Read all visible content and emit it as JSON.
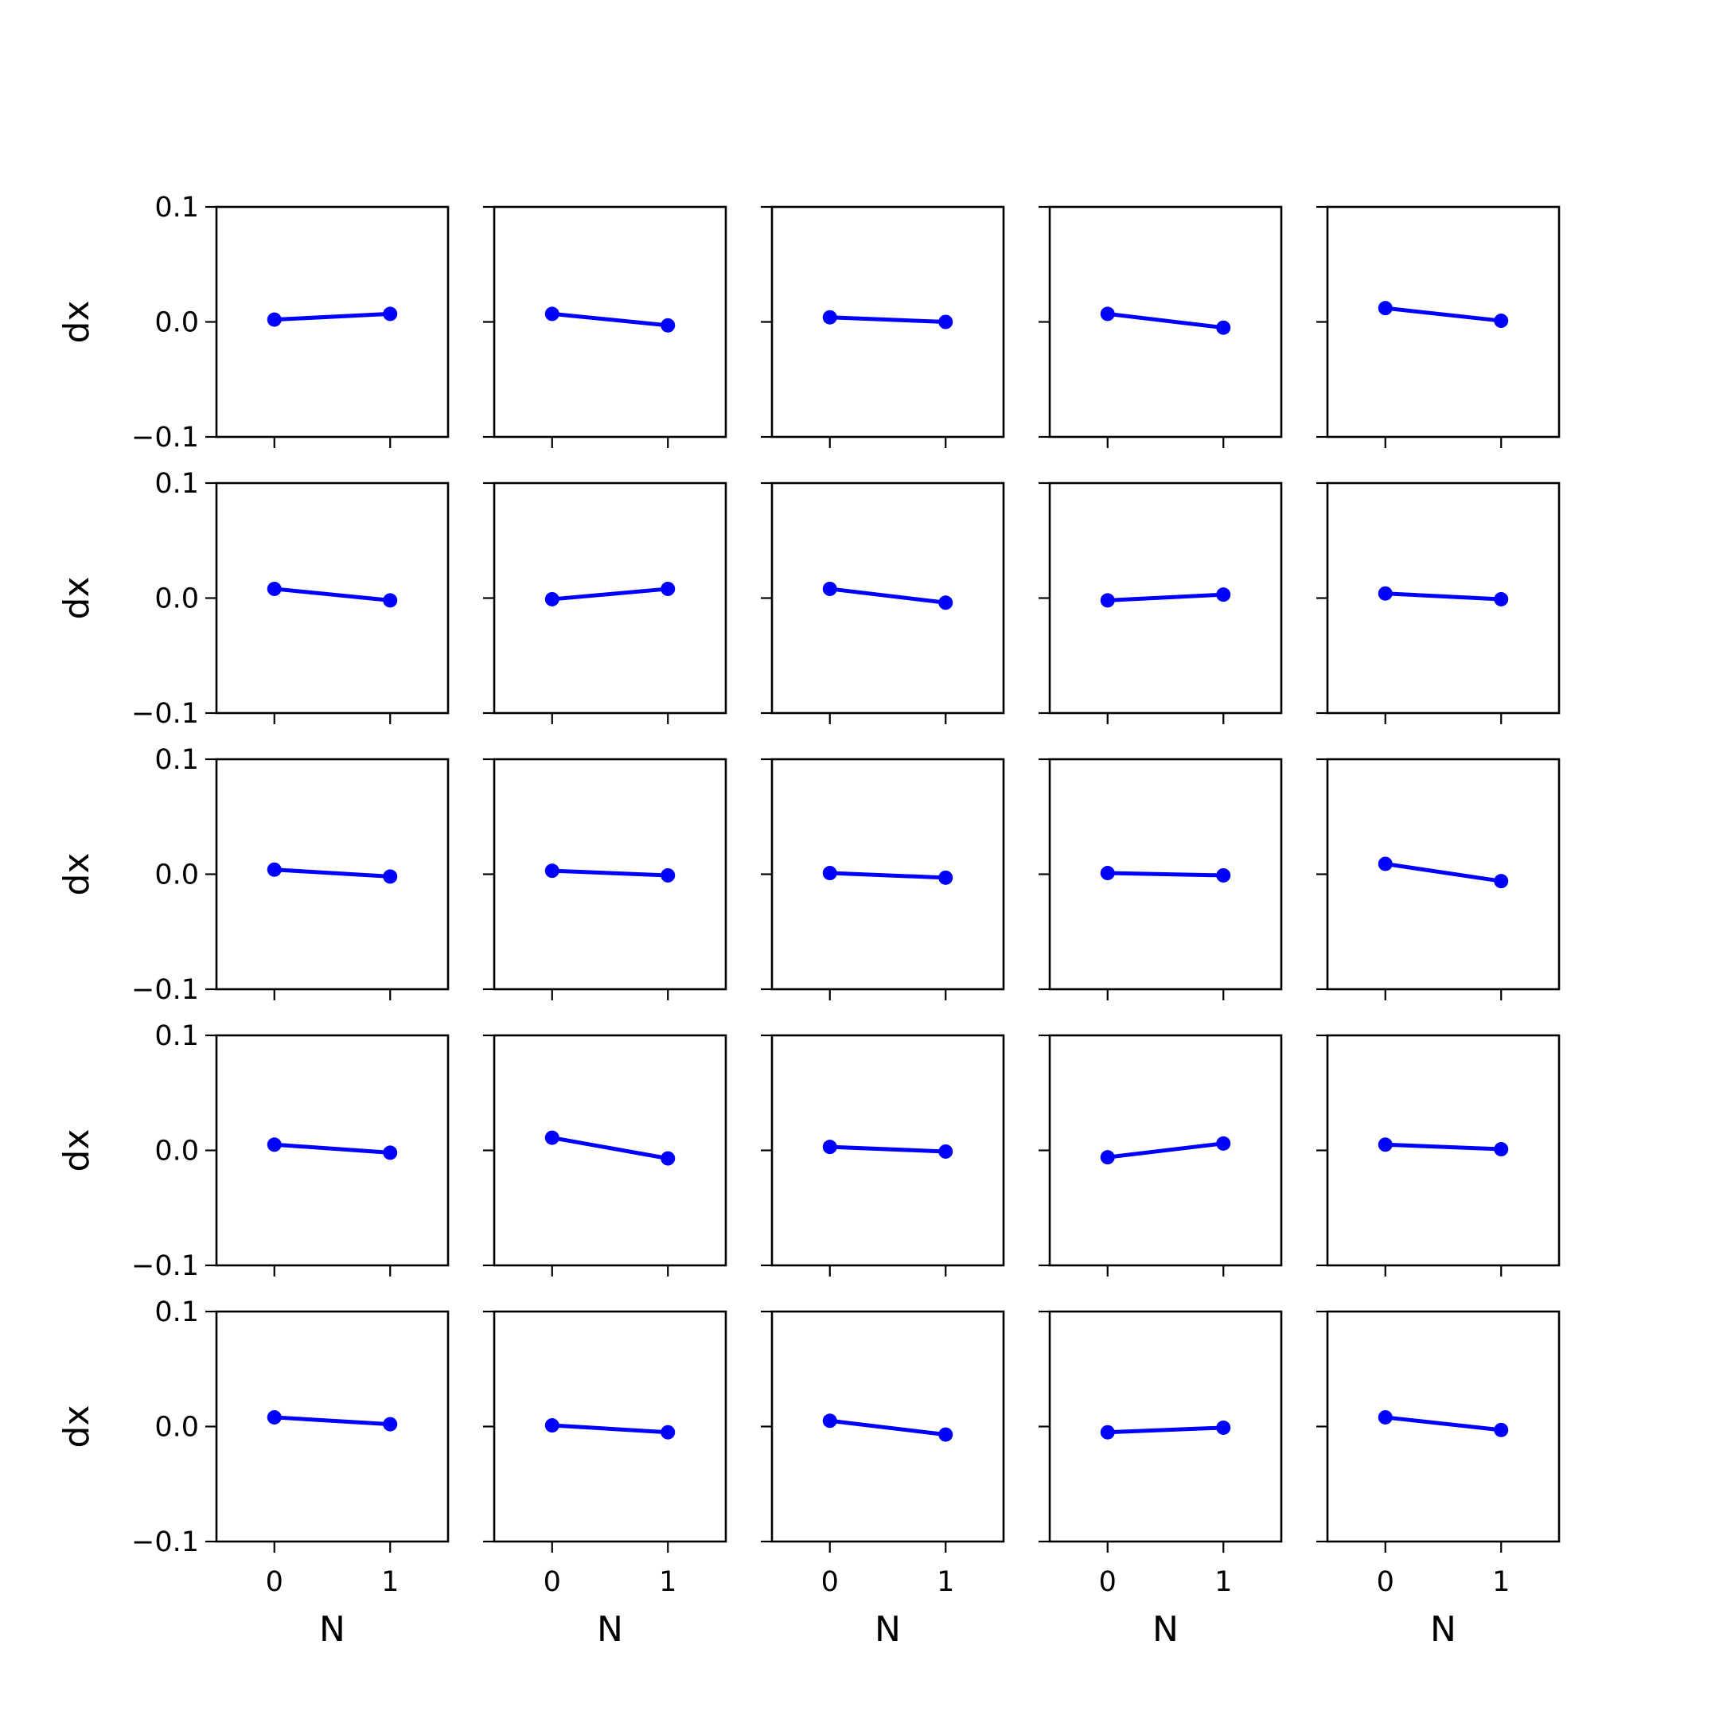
{
  "chart_data": {
    "type": "line",
    "layout": "5x5 grid of small multiples",
    "xlabel": "N",
    "ylabel": "dx",
    "x": [
      0,
      1
    ],
    "xticks": [
      "0",
      "1"
    ],
    "yticks": [
      "0.1",
      "0.0",
      "−0.1"
    ],
    "ytick_values": [
      0.1,
      0.0,
      -0.1
    ],
    "xlim": [
      -0.5,
      1.5
    ],
    "ylim": [
      -0.1,
      0.1
    ],
    "grid": false,
    "line_color": "#0000ff",
    "marker": "circle",
    "panels": [
      [
        [
          0.002,
          0.007
        ],
        [
          0.007,
          -0.003
        ],
        [
          0.004,
          0.0
        ],
        [
          0.007,
          -0.005
        ],
        [
          0.012,
          0.001
        ]
      ],
      [
        [
          0.008,
          -0.002
        ],
        [
          -0.001,
          0.008
        ],
        [
          0.008,
          -0.004
        ],
        [
          -0.002,
          0.003
        ],
        [
          0.004,
          -0.001
        ]
      ],
      [
        [
          0.004,
          -0.002
        ],
        [
          0.003,
          -0.001
        ],
        [
          0.001,
          -0.003
        ],
        [
          0.001,
          -0.001
        ],
        [
          0.009,
          -0.006
        ]
      ],
      [
        [
          0.005,
          -0.002
        ],
        [
          0.011,
          -0.007
        ],
        [
          0.003,
          -0.001
        ],
        [
          -0.006,
          0.006
        ],
        [
          0.005,
          0.001
        ]
      ],
      [
        [
          0.008,
          0.002
        ],
        [
          0.001,
          -0.005
        ],
        [
          0.005,
          -0.007
        ],
        [
          -0.005,
          -0.001
        ],
        [
          0.008,
          -0.003
        ]
      ]
    ]
  }
}
